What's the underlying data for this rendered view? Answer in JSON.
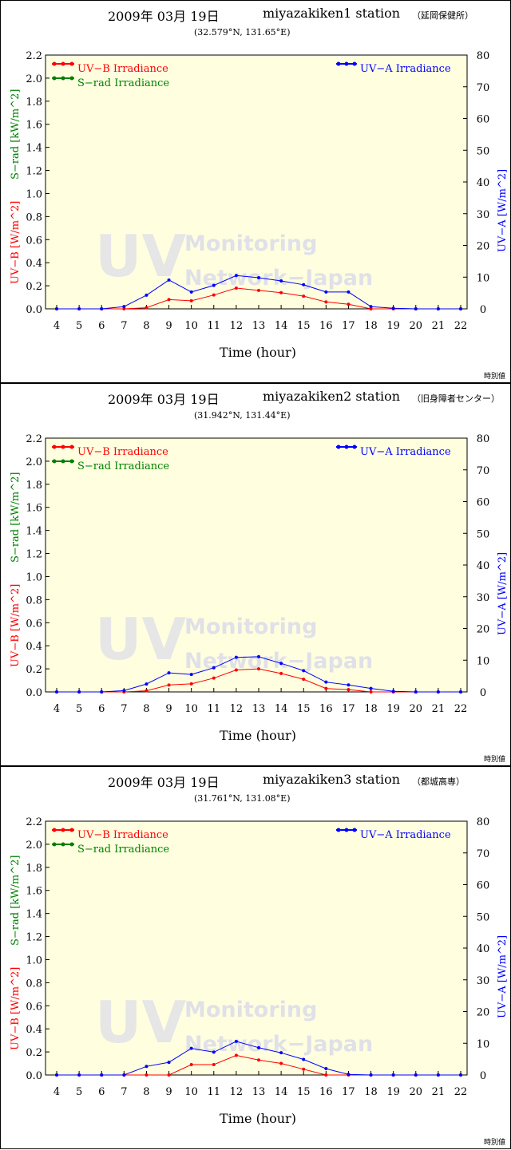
{
  "colors": {
    "uvb": "#ff0000",
    "srad": "#008000",
    "uva": "#0000ff",
    "plot_bg": "#ffffe0"
  },
  "common": {
    "x_title": "Time (hour)",
    "y_left_title_uvb": "UV−B [W/m^2]",
    "y_left_title_srad": "S−rad [kW/m^2]",
    "y_right_title": "UV−A [W/m^2]",
    "legend_uvb": "UV−B Irradiance",
    "legend_srad": "S−rad Irradiance",
    "legend_uva": "UV−A Irradiance",
    "watermark_big": "UV",
    "watermark_line1": "Monitoring",
    "watermark_line2": "Network−Japan",
    "footer_note": "時別値"
  },
  "chart_data": [
    {
      "type": "line",
      "date": "2009年 03月 19日",
      "station": "miyazakiken1 station",
      "location": "（延岡保健所）",
      "coords": "(32.579°N, 131.65°E)",
      "x": [
        4,
        5,
        6,
        7,
        8,
        9,
        10,
        11,
        12,
        13,
        14,
        15,
        16,
        17,
        18,
        19,
        20,
        21,
        22
      ],
      "xlim": [
        4,
        22
      ],
      "ylim_left": [
        0,
        2.2
      ],
      "ylim_right": [
        0,
        80
      ],
      "left_ticks": [
        "0.0",
        "0.2",
        "0.4",
        "0.6",
        "0.8",
        "1.0",
        "1.2",
        "1.4",
        "1.6",
        "1.8",
        "2.0",
        "2.2"
      ],
      "right_ticks": [
        "0",
        "10",
        "20",
        "30",
        "40",
        "50",
        "60",
        "70",
        "80"
      ],
      "series": [
        {
          "name": "UV−B Irradiance",
          "axis": "left",
          "values": [
            0,
            0,
            0,
            0,
            0.01,
            0.08,
            0.07,
            0.12,
            0.18,
            0.16,
            0.14,
            0.11,
            0.06,
            0.04,
            0,
            0,
            0,
            0,
            0
          ]
        },
        {
          "name": "UV−A Irradiance",
          "axis": "right",
          "values": [
            0,
            0,
            0,
            0.7,
            4.3,
            9.1,
            5.3,
            7.4,
            10.5,
            9.8,
            8.8,
            7.6,
            5.3,
            5.3,
            0.7,
            0.2,
            0,
            0,
            0
          ]
        }
      ]
    },
    {
      "type": "line",
      "date": "2009年 03月 19日",
      "station": "miyazakiken2 station",
      "location": "（旧身障者センター）",
      "coords": "(31.942°N, 131.44°E)",
      "x": [
        4,
        5,
        6,
        7,
        8,
        9,
        10,
        11,
        12,
        13,
        14,
        15,
        16,
        17,
        18,
        19,
        20,
        21,
        22
      ],
      "xlim": [
        4,
        22
      ],
      "ylim_left": [
        0,
        2.2
      ],
      "ylim_right": [
        0,
        80
      ],
      "left_ticks": [
        "0.0",
        "0.2",
        "0.4",
        "0.6",
        "0.8",
        "1.0",
        "1.2",
        "1.4",
        "1.6",
        "1.8",
        "2.0",
        "2.2"
      ],
      "right_ticks": [
        "0",
        "10",
        "20",
        "30",
        "40",
        "50",
        "60",
        "70",
        "80"
      ],
      "series": [
        {
          "name": "UV−B Irradiance",
          "axis": "left",
          "values": [
            0,
            0,
            0,
            0,
            0.01,
            0.06,
            0.07,
            0.12,
            0.19,
            0.2,
            0.16,
            0.11,
            0.03,
            0.02,
            0,
            0,
            0,
            0,
            0
          ]
        },
        {
          "name": "UV−A Irradiance",
          "axis": "right",
          "values": [
            0,
            0,
            0,
            0.4,
            2.5,
            6.0,
            5.5,
            7.6,
            10.9,
            11.1,
            9.0,
            6.7,
            3.1,
            2.2,
            1.1,
            0.2,
            0,
            0,
            0
          ]
        }
      ]
    },
    {
      "type": "line",
      "date": "2009年 03月 19日",
      "station": "miyazakiken3 station",
      "location": "（都城高専）",
      "coords": "(31.761°N, 131.08°E)",
      "x": [
        4,
        5,
        6,
        7,
        8,
        9,
        10,
        11,
        12,
        13,
        14,
        15,
        16,
        17,
        18,
        19,
        20,
        21,
        22
      ],
      "xlim": [
        4,
        22
      ],
      "ylim_left": [
        0,
        2.2
      ],
      "ylim_right": [
        0,
        80
      ],
      "left_ticks": [
        "0.0",
        "0.2",
        "0.4",
        "0.6",
        "0.8",
        "1.0",
        "1.2",
        "1.4",
        "1.6",
        "1.8",
        "2.0",
        "2.2"
      ],
      "right_ticks": [
        "0",
        "10",
        "20",
        "30",
        "40",
        "50",
        "60",
        "70",
        "80"
      ],
      "series": [
        {
          "name": "UV−B Irradiance",
          "axis": "left",
          "values": [
            0,
            0,
            0,
            0,
            0,
            0,
            0.09,
            0.09,
            0.17,
            0.13,
            0.1,
            0.05,
            0,
            0,
            0,
            0,
            0,
            0,
            0
          ]
        },
        {
          "name": "UV−A Irradiance",
          "axis": "right",
          "values": [
            0,
            0,
            0,
            0,
            2.7,
            4.0,
            8.4,
            7.2,
            10.6,
            8.6,
            7.0,
            4.9,
            2.0,
            0.2,
            0,
            0,
            0,
            0,
            0
          ]
        }
      ]
    }
  ]
}
